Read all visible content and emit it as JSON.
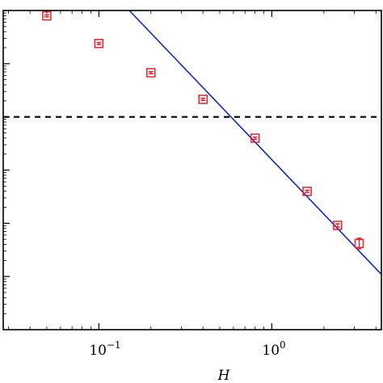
{
  "chart_data": {
    "type": "scatter",
    "title": "",
    "xlabel": "H",
    "ylabel": "",
    "x_scale": "log",
    "y_scale": "log",
    "xlim": [
      0.028,
      4.3
    ],
    "ylim_decades": [
      -6.0,
      0.0
    ],
    "x_ticks": [
      {
        "value": 0.1,
        "base": "10",
        "exp": "−1"
      },
      {
        "value": 1,
        "base": "10",
        "exp": "0"
      }
    ],
    "y_major_ticks_decades": [
      -5,
      -4,
      -3,
      -2,
      -1
    ],
    "grid": false,
    "legend": "none",
    "colors": {
      "markers": "#e8202a",
      "fit_line": "#1028c8",
      "reference_line": "#000000"
    },
    "series": [
      {
        "type": "scatter",
        "marker": "square-with-errorbar",
        "x": [
          0.05,
          0.1,
          0.2,
          0.4,
          0.8,
          1.6,
          2.4,
          3.2
        ],
        "y_decades": [
          -0.1,
          -0.62,
          -1.17,
          -1.67,
          -2.4,
          -3.4,
          -4.04,
          -4.38
        ],
        "err_decades": [
          0.02,
          0.02,
          0.02,
          0.02,
          0.02,
          0.02,
          0.03,
          0.1
        ]
      },
      {
        "type": "line",
        "style": "solid",
        "x": [
          0.15,
          4.3
        ],
        "y_decades": [
          0.0,
          -4.96
        ]
      },
      {
        "type": "line",
        "style": "dashed",
        "y_decades_const": -2.0
      }
    ]
  }
}
